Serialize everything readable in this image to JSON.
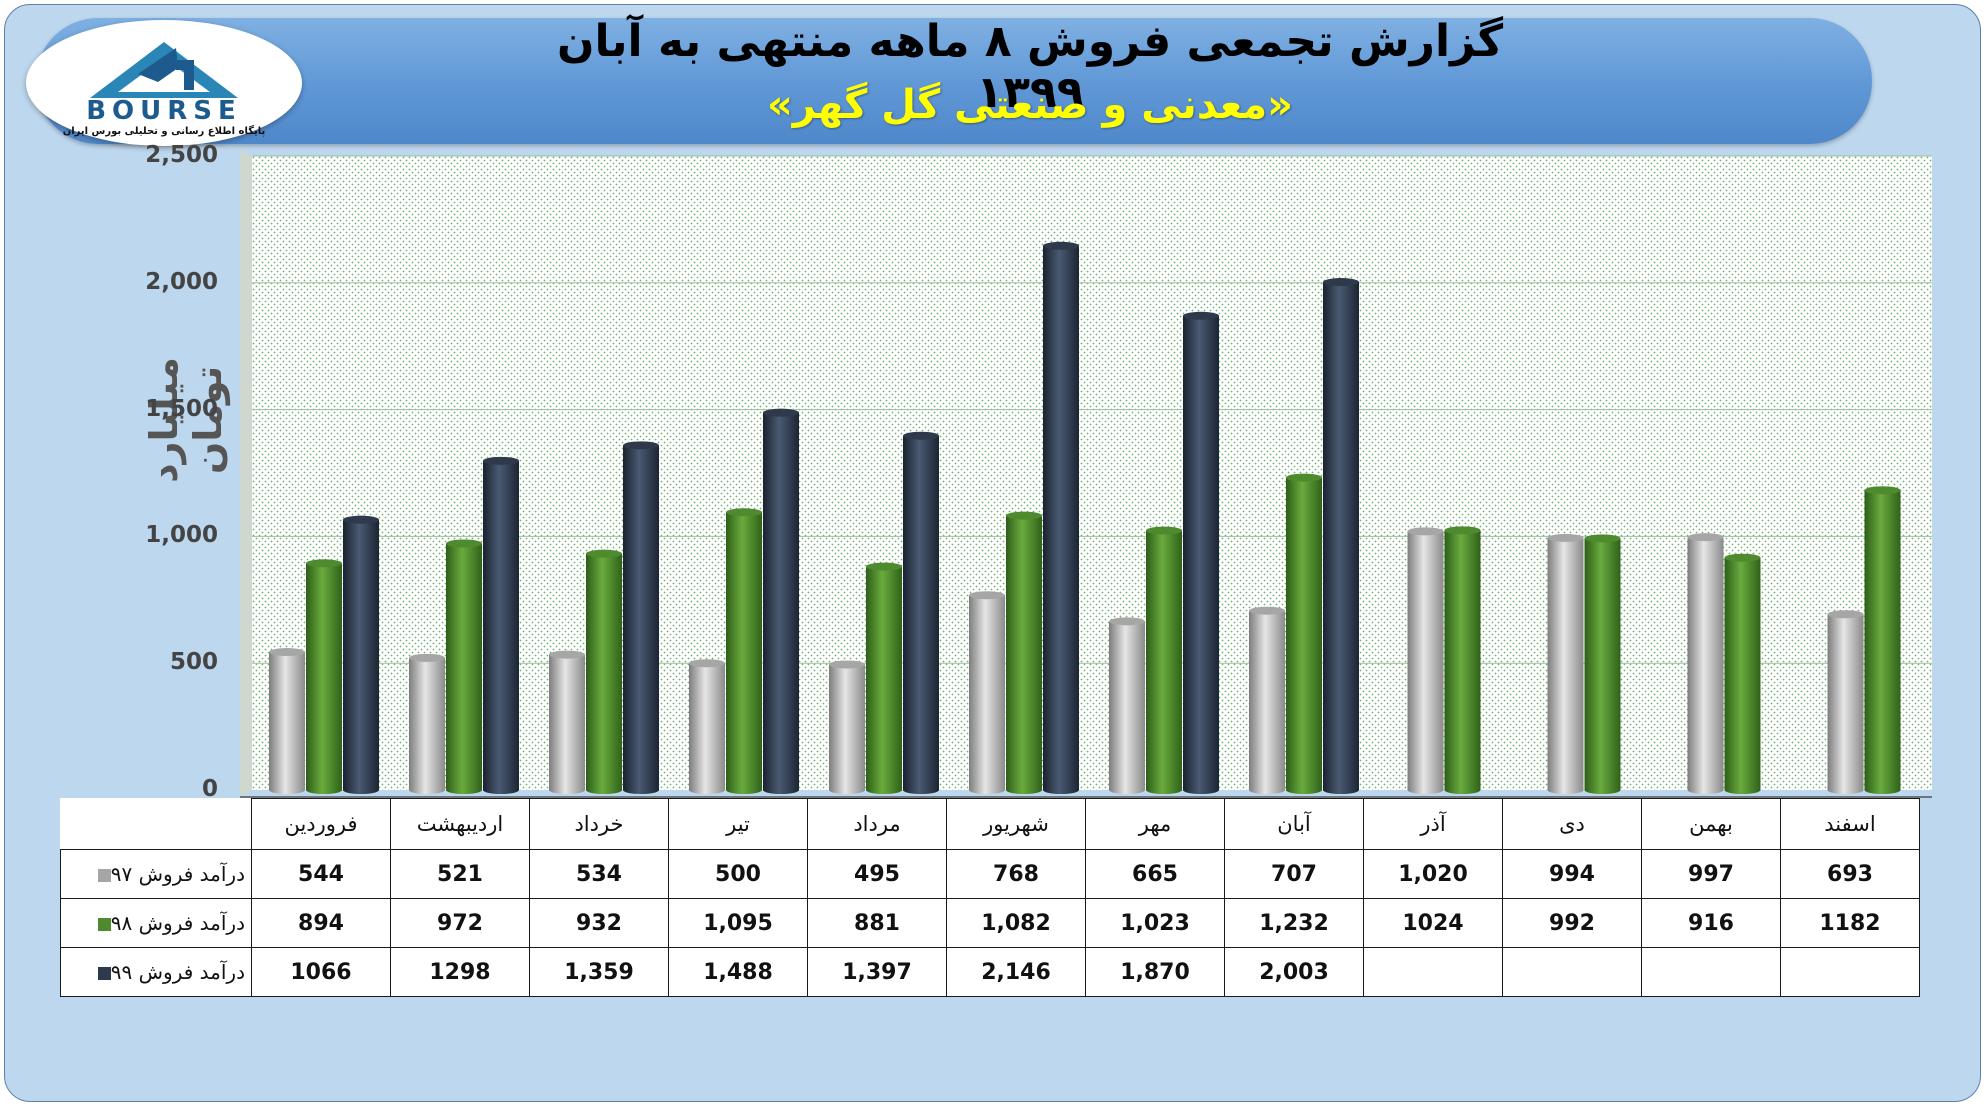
{
  "header": {
    "title": "گزارش تجمعی فروش ۸ ماهه منتهی به آبان ۱۳۹۹",
    "subtitle": "«معدنی و صنعتی گل گهر»",
    "logo_text": "BOURSE",
    "logo_subtext": "پایگاه اطلاع رسانی و تحلیلی بورس ایران"
  },
  "chart_data": {
    "type": "bar",
    "ylabel": "میلیارد تومان",
    "ylim": [
      0,
      2500
    ],
    "yticks": [
      "0",
      "500",
      "1,000",
      "1,500",
      "2,000",
      "2,500"
    ],
    "grid": true,
    "categories": [
      "فروردین",
      "اردیبهشت",
      "خرداد",
      "تیر",
      "مرداد",
      "شهریور",
      "مهر",
      "آبان",
      "آذر",
      "دی",
      "بهمن",
      "اسفند"
    ],
    "series": [
      {
        "name": "درآمد فروش ۹۷",
        "color": "#a6a6a6",
        "values": [
          544,
          521,
          534,
          500,
          495,
          768,
          665,
          707,
          1020,
          994,
          997,
          693
        ],
        "labels": [
          "544",
          "521",
          "534",
          "500",
          "495",
          "768",
          "665",
          "707",
          "1,020",
          "994",
          "997",
          "693"
        ]
      },
      {
        "name": "درآمد فروش ۹۸",
        "color": "#4e8a2e",
        "values": [
          894,
          972,
          932,
          1095,
          881,
          1082,
          1023,
          1232,
          1024,
          992,
          916,
          1182
        ],
        "labels": [
          "894",
          "972",
          "932",
          "1,095",
          "881",
          "1,082",
          "1,023",
          "1,232",
          "1024",
          "992",
          "916",
          "1182"
        ]
      },
      {
        "name": "درآمد فروش ۹۹",
        "color": "#2e3a4c",
        "values": [
          1066,
          1298,
          1359,
          1488,
          1397,
          2146,
          1870,
          2003,
          null,
          null,
          null,
          null
        ],
        "labels": [
          "1066",
          "1298",
          "1,359",
          "1,488",
          "1,397",
          "2,146",
          "1,870",
          "2,003",
          "",
          "",
          "",
          ""
        ]
      }
    ]
  }
}
